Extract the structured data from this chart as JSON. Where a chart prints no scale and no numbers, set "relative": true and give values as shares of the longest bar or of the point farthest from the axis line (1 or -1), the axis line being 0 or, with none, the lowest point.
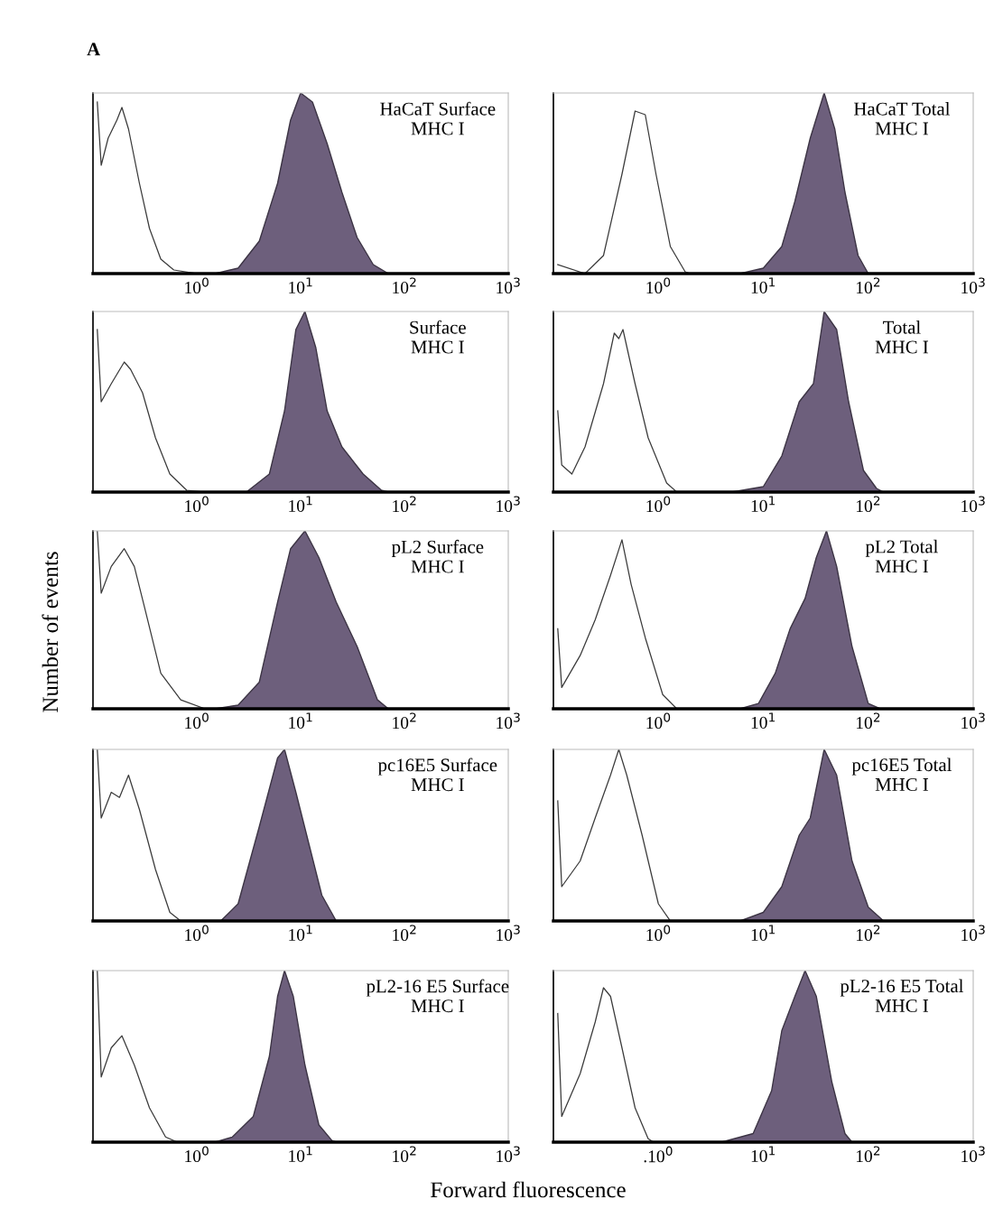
{
  "chart_data": [
    {
      "type": "area",
      "title": "A",
      "annotations": [
        "HaCaT Surface\nMHC I"
      ],
      "relative": true,
      "log": "x",
      "xlim": [
        0.1,
        1000
      ],
      "xticks": [
        {
          "value": 1,
          "label": "10$^{0}$"
        },
        {
          "value": 10,
          "label": "10$^{1}$"
        },
        {
          "value": 100,
          "label": "10$^{2}$"
        },
        {
          "value": 1000,
          "label": "10$^{3}$"
        }
      ],
      "grid": false,
      "legend": false,
      "series": [
        {
          "type": "line",
          "color": "#3a3a3a",
          "x": [
            0.11,
            0.12,
            0.14,
            0.17,
            0.19,
            0.22,
            0.28,
            0.35,
            0.45,
            0.6,
            1.0
          ],
          "values": [
            0.95,
            0.6,
            0.75,
            0.85,
            0.92,
            0.8,
            0.5,
            0.25,
            0.08,
            0.02,
            0
          ]
        },
        {
          "type": "area",
          "color": "#6d5f7c",
          "x": [
            1.5,
            2.5,
            4,
            6,
            8,
            10,
            13,
            18,
            25,
            35,
            50,
            70
          ],
          "values": [
            0,
            0.03,
            0.18,
            0.5,
            0.85,
            1.0,
            0.95,
            0.72,
            0.45,
            0.2,
            0.05,
            0
          ]
        }
      ]
    },
    {
      "type": "area",
      "annotations": [
        "HaCaT Total\nMHC I"
      ],
      "relative": true,
      "log": "x",
      "xlim": [
        0.1,
        1000
      ],
      "xticks": [
        {
          "value": 1,
          "label": "10$^{0}$"
        },
        {
          "value": 10,
          "label": "10$^{1}$"
        },
        {
          "value": 100,
          "label": "10$^{2}$"
        },
        {
          "value": 1000,
          "label": "10$^{3}$"
        }
      ],
      "grid": false,
      "legend": false,
      "series": [
        {
          "type": "line",
          "color": "#3a3a3a",
          "x": [
            0.11,
            0.2,
            0.3,
            0.45,
            0.6,
            0.75,
            0.95,
            1.3,
            1.8,
            2
          ],
          "values": [
            0.05,
            0,
            0.1,
            0.55,
            0.9,
            0.88,
            0.55,
            0.15,
            0.01,
            0
          ]
        },
        {
          "type": "area",
          "color": "#6d5f7c",
          "x": [
            6,
            10,
            15,
            20,
            28,
            38,
            48,
            60,
            80,
            100
          ],
          "values": [
            0,
            0.03,
            0.15,
            0.4,
            0.75,
            1.0,
            0.8,
            0.45,
            0.1,
            0
          ]
        }
      ]
    },
    {
      "type": "area",
      "annotations": [
        "Surface\nMHC I"
      ],
      "relative": true,
      "log": "x",
      "xlim": [
        0.1,
        1000
      ],
      "xticks": [
        {
          "value": 1,
          "label": "10$^{0}$"
        },
        {
          "value": 10,
          "label": "10$^{1}$"
        },
        {
          "value": 100,
          "label": "10$^{2}$"
        },
        {
          "value": 1000,
          "label": "10$^{3}$"
        }
      ],
      "grid": false,
      "legend": false,
      "series": [
        {
          "type": "line",
          "color": "#3a3a3a",
          "x": [
            0.11,
            0.12,
            0.15,
            0.2,
            0.23,
            0.3,
            0.4,
            0.55,
            0.8,
            1.2
          ],
          "values": [
            0.9,
            0.5,
            0.6,
            0.72,
            0.68,
            0.55,
            0.3,
            0.1,
            0.01,
            0
          ]
        },
        {
          "type": "area",
          "color": "#6d5f7c",
          "x": [
            3,
            5,
            7,
            9,
            11,
            14,
            18,
            25,
            40,
            60,
            70
          ],
          "values": [
            0,
            0.1,
            0.45,
            0.9,
            1.0,
            0.8,
            0.45,
            0.25,
            0.1,
            0.01,
            0
          ]
        }
      ]
    },
    {
      "type": "area",
      "annotations": [
        "Total\nMHC I"
      ],
      "relative": true,
      "log": "x",
      "xlim": [
        0.1,
        1000
      ],
      "xticks": [
        {
          "value": 1,
          "label": "10$^{0}$"
        },
        {
          "value": 10,
          "label": "10$^{1}$"
        },
        {
          "value": 100,
          "label": "10$^{2}$"
        },
        {
          "value": 1000,
          "label": "10$^{3}$"
        }
      ],
      "grid": false,
      "legend": false,
      "series": [
        {
          "type": "line",
          "color": "#3a3a3a",
          "x": [
            0.11,
            0.12,
            0.15,
            0.2,
            0.3,
            0.38,
            0.42,
            0.46,
            0.6,
            0.8,
            1.2,
            1.5
          ],
          "values": [
            0.45,
            0.15,
            0.1,
            0.25,
            0.6,
            0.88,
            0.85,
            0.9,
            0.6,
            0.3,
            0.05,
            0
          ]
        },
        {
          "type": "area",
          "color": "#6d5f7c",
          "x": [
            5,
            10,
            15,
            22,
            30,
            38,
            50,
            65,
            90,
            120,
            140
          ],
          "values": [
            0,
            0.03,
            0.2,
            0.5,
            0.6,
            1.0,
            0.9,
            0.5,
            0.12,
            0.02,
            0
          ]
        }
      ]
    },
    {
      "type": "area",
      "ylabel": "Number of events",
      "annotations": [
        "pL2 Surface\nMHC I"
      ],
      "relative": true,
      "log": "x",
      "xlim": [
        0.1,
        1000
      ],
      "xticks": [
        {
          "value": 1,
          "label": "10$^{0}$"
        },
        {
          "value": 10,
          "label": "10$^{1}$"
        },
        {
          "value": 100,
          "label": "10$^{2}$"
        },
        {
          "value": 1000,
          "label": "10$^{3}$"
        }
      ],
      "grid": false,
      "legend": false,
      "series": [
        {
          "type": "line",
          "color": "#3a3a3a",
          "x": [
            0.11,
            0.12,
            0.15,
            0.2,
            0.25,
            0.32,
            0.45,
            0.7,
            1.2
          ],
          "values": [
            1.0,
            0.65,
            0.8,
            0.9,
            0.8,
            0.55,
            0.2,
            0.05,
            0
          ]
        },
        {
          "type": "area",
          "color": "#6d5f7c",
          "x": [
            1.5,
            2.5,
            4,
            6,
            8,
            11,
            15,
            22,
            35,
            55,
            70
          ],
          "values": [
            0,
            0.02,
            0.15,
            0.6,
            0.9,
            1.0,
            0.85,
            0.6,
            0.35,
            0.05,
            0
          ]
        }
      ]
    },
    {
      "type": "area",
      "annotations": [
        "pL2 Total\nMHC I"
      ],
      "relative": true,
      "log": "x",
      "xlim": [
        0.1,
        1000
      ],
      "xticks": [
        {
          "value": 1,
          "label": "10$^{0}$"
        },
        {
          "value": 10,
          "label": "10$^{1}$"
        },
        {
          "value": 100,
          "label": "10$^{2}$"
        },
        {
          "value": 1000,
          "label": "10$^{3}$"
        }
      ],
      "grid": false,
      "legend": false,
      "series": [
        {
          "type": "line",
          "color": "#3a3a3a",
          "x": [
            0.11,
            0.12,
            0.18,
            0.25,
            0.35,
            0.45,
            0.55,
            0.75,
            1.1,
            1.5
          ],
          "values": [
            0.45,
            0.12,
            0.3,
            0.5,
            0.75,
            0.95,
            0.7,
            0.4,
            0.08,
            0
          ]
        },
        {
          "type": "area",
          "color": "#6d5f7c",
          "x": [
            6,
            9,
            13,
            18,
            25,
            32,
            40,
            50,
            70,
            100,
            130
          ],
          "values": [
            0,
            0.03,
            0.2,
            0.45,
            0.62,
            0.85,
            1.0,
            0.8,
            0.35,
            0.03,
            0
          ]
        }
      ]
    },
    {
      "type": "area",
      "annotations": [
        "pc16E5 Surface\nMHC I"
      ],
      "relative": true,
      "log": "x",
      "xlim": [
        0.1,
        1000
      ],
      "xticks": [
        {
          "value": 1,
          "label": "10$^{0}$"
        },
        {
          "value": 10,
          "label": "10$^{1}$"
        },
        {
          "value": 100,
          "label": "10$^{2}$"
        },
        {
          "value": 1000,
          "label": "10$^{3}$"
        }
      ],
      "grid": false,
      "legend": false,
      "series": [
        {
          "type": "line",
          "color": "#3a3a3a",
          "x": [
            0.11,
            0.12,
            0.15,
            0.18,
            0.22,
            0.28,
            0.4,
            0.55,
            0.7
          ],
          "values": [
            1.0,
            0.6,
            0.75,
            0.72,
            0.85,
            0.65,
            0.3,
            0.05,
            0
          ]
        },
        {
          "type": "area",
          "color": "#6d5f7c",
          "x": [
            1.7,
            2.5,
            4,
            6,
            7,
            9,
            12,
            16,
            22
          ],
          "values": [
            0,
            0.1,
            0.55,
            0.95,
            1.0,
            0.75,
            0.45,
            0.15,
            0
          ]
        }
      ]
    },
    {
      "type": "area",
      "annotations": [
        "pc16E5 Total\nMHC I"
      ],
      "relative": true,
      "log": "x",
      "xlim": [
        0.1,
        1000
      ],
      "xticks": [
        {
          "value": 1,
          "label": "10$^{0}$"
        },
        {
          "value": 10,
          "label": "10$^{1}$"
        },
        {
          "value": 100,
          "label": "10$^{2}$"
        },
        {
          "value": 1000,
          "label": "10$^{3}$"
        }
      ],
      "grid": false,
      "legend": false,
      "series": [
        {
          "type": "line",
          "color": "#3a3a3a",
          "x": [
            0.11,
            0.12,
            0.18,
            0.25,
            0.35,
            0.42,
            0.5,
            0.7,
            1.0,
            1.3
          ],
          "values": [
            0.7,
            0.2,
            0.35,
            0.6,
            0.85,
            1.0,
            0.85,
            0.5,
            0.1,
            0
          ]
        },
        {
          "type": "area",
          "color": "#6d5f7c",
          "x": [
            6,
            10,
            15,
            22,
            28,
            38,
            50,
            70,
            100,
            140
          ],
          "values": [
            0,
            0.05,
            0.2,
            0.5,
            0.6,
            1.0,
            0.85,
            0.35,
            0.08,
            0
          ]
        }
      ]
    },
    {
      "type": "area",
      "xlabel": "Forward fluorescence",
      "annotations": [
        "pL2-16 E5 Surface\nMHC I"
      ],
      "relative": true,
      "log": "x",
      "xlim": [
        0.1,
        1000
      ],
      "xticks": [
        {
          "value": 1,
          "label": "10$^{0}$"
        },
        {
          "value": 10,
          "label": "10$^{1}$"
        },
        {
          "value": 100,
          "label": "10$^{2}$"
        },
        {
          "value": 1000,
          "label": "10$^{3}$"
        }
      ],
      "grid": false,
      "legend": false,
      "series": [
        {
          "type": "line",
          "color": "#3a3a3a",
          "x": [
            0.11,
            0.12,
            0.15,
            0.19,
            0.25,
            0.35,
            0.5,
            0.65
          ],
          "values": [
            1.0,
            0.38,
            0.55,
            0.62,
            0.45,
            0.2,
            0.03,
            0
          ]
        },
        {
          "type": "area",
          "color": "#6d5f7c",
          "x": [
            1.5,
            2.2,
            3.5,
            5,
            6,
            7,
            8.5,
            11,
            15,
            20,
            22
          ],
          "values": [
            0,
            0.03,
            0.15,
            0.5,
            0.85,
            1.0,
            0.85,
            0.45,
            0.1,
            0.01,
            0
          ]
        }
      ]
    },
    {
      "type": "area",
      "annotations": [
        "pL2-16 E5 Total\nMHC I"
      ],
      "relative": true,
      "log": "x",
      "xlim": [
        0.1,
        1000
      ],
      "xticks": [
        {
          "value": 1,
          "label": ".10$^{0}$"
        },
        {
          "value": 10,
          "label": "10$^{1}$"
        },
        {
          "value": 100,
          "label": "10$^{2}$"
        },
        {
          "value": 1000,
          "label": "10$^{3}$"
        }
      ],
      "grid": false,
      "legend": false,
      "series": [
        {
          "type": "line",
          "color": "#3a3a3a",
          "x": [
            0.11,
            0.12,
            0.18,
            0.25,
            0.3,
            0.35,
            0.45,
            0.6,
            0.8,
            0.9
          ],
          "values": [
            0.75,
            0.15,
            0.4,
            0.7,
            0.9,
            0.85,
            0.55,
            0.2,
            0.02,
            0
          ]
        },
        {
          "type": "area",
          "color": "#6d5f7c",
          "x": [
            4,
            8,
            12,
            15,
            20,
            25,
            32,
            45,
            60,
            70
          ],
          "values": [
            0,
            0.05,
            0.3,
            0.65,
            0.85,
            1.0,
            0.85,
            0.35,
            0.05,
            0
          ]
        }
      ]
    }
  ]
}
